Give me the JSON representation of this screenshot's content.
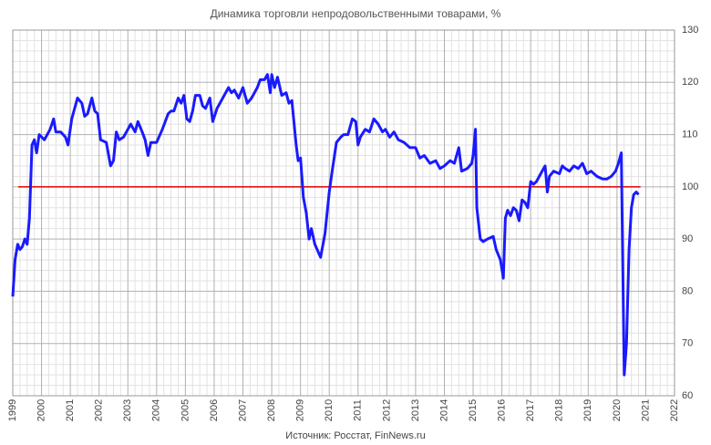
{
  "chart_data": {
    "type": "line",
    "title": "Динамика торговли непродовольственными товарами, %",
    "source": "Источник: Росстат, FinNews.ru",
    "series": [
      {
        "name": "Динамика",
        "color": "#1a1aff",
        "x": [
          1999.0,
          1999.08,
          1999.17,
          1999.25,
          1999.33,
          1999.42,
          1999.5,
          1999.58,
          1999.67,
          1999.75,
          1999.83,
          1999.92,
          2000.1,
          2000.3,
          2000.42,
          2000.5,
          2000.67,
          2000.83,
          2000.92,
          2001.05,
          2001.25,
          2001.4,
          2001.5,
          2001.6,
          2001.75,
          2001.85,
          2001.95,
          2002.05,
          2002.25,
          2002.4,
          2002.5,
          2002.6,
          2002.7,
          2002.85,
          2003.0,
          2003.1,
          2003.25,
          2003.35,
          2003.5,
          2003.6,
          2003.7,
          2003.8,
          2004.0,
          2004.2,
          2004.4,
          2004.5,
          2004.6,
          2004.75,
          2004.85,
          2004.95,
          2005.05,
          2005.15,
          2005.25,
          2005.35,
          2005.5,
          2005.6,
          2005.7,
          2005.85,
          2005.95,
          2006.1,
          2006.3,
          2006.5,
          2006.6,
          2006.7,
          2006.85,
          2007.0,
          2007.15,
          2007.3,
          2007.5,
          2007.6,
          2007.75,
          2007.85,
          2007.95,
          2008.0,
          2008.1,
          2008.2,
          2008.35,
          2008.5,
          2008.6,
          2008.7,
          2008.85,
          2008.92,
          2009.0,
          2009.1,
          2009.2,
          2009.3,
          2009.38,
          2009.5,
          2009.7,
          2009.85,
          2010.0,
          2010.1,
          2010.25,
          2010.4,
          2010.5,
          2010.65,
          2010.8,
          2010.92,
          2011.0,
          2011.08,
          2011.25,
          2011.4,
          2011.55,
          2011.7,
          2011.85,
          2011.95,
          2012.1,
          2012.25,
          2012.4,
          2012.6,
          2012.8,
          2013.0,
          2013.15,
          2013.3,
          2013.5,
          2013.7,
          2013.85,
          2014.0,
          2014.2,
          2014.35,
          2014.5,
          2014.6,
          2014.8,
          2014.95,
          2015.0,
          2015.08,
          2015.13,
          2015.25,
          2015.35,
          2015.5,
          2015.7,
          2015.8,
          2015.95,
          2016.05,
          2016.12,
          2016.2,
          2016.3,
          2016.4,
          2016.5,
          2016.6,
          2016.7,
          2016.8,
          2016.9,
          2017.0,
          2017.1,
          2017.2,
          2017.35,
          2017.5,
          2017.58,
          2017.65,
          2017.8,
          2018.0,
          2018.1,
          2018.2,
          2018.35,
          2018.5,
          2018.65,
          2018.8,
          2018.95,
          2019.1,
          2019.3,
          2019.5,
          2019.65,
          2019.8,
          2019.95,
          2020.05,
          2020.15,
          2020.25,
          2020.33,
          2020.42,
          2020.5,
          2020.58,
          2020.67,
          2020.75
        ],
        "values": [
          79,
          86,
          89,
          88,
          88.5,
          90,
          89,
          94,
          108,
          109,
          106.5,
          110,
          109,
          111,
          113,
          110.5,
          110.5,
          109.5,
          108,
          113,
          117,
          116,
          113.5,
          114,
          117,
          114.5,
          114,
          109,
          108.5,
          104,
          105,
          110.5,
          109,
          109.5,
          111,
          112,
          110.5,
          112.5,
          110.5,
          109,
          106,
          108.5,
          108.5,
          111,
          114,
          114.5,
          114.5,
          117,
          116,
          117.5,
          113,
          112.5,
          114.5,
          117.5,
          117.5,
          115.5,
          115,
          117,
          112.5,
          115,
          117,
          119,
          118,
          118.5,
          117,
          119,
          116,
          117,
          119,
          120.5,
          120.5,
          121.5,
          118,
          121.5,
          119,
          121,
          117.5,
          118,
          116,
          116.5,
          108,
          105,
          105.5,
          98,
          95,
          90,
          92,
          89,
          86.5,
          91,
          99,
          103,
          108.5,
          109.5,
          110,
          110,
          113,
          112.5,
          108,
          109.5,
          111,
          110.5,
          113,
          112,
          110.5,
          111,
          109.5,
          110.5,
          109,
          108.5,
          107.5,
          107.5,
          105.5,
          106,
          104.5,
          105,
          103.5,
          104,
          105,
          104.5,
          107.5,
          103,
          103.5,
          104.5,
          106,
          111,
          96,
          90,
          89.5,
          90,
          90.5,
          88,
          86,
          82.5,
          94,
          95.5,
          94.5,
          96,
          95.5,
          93.5,
          97.5,
          97,
          96,
          101,
          100.5,
          101,
          102.5,
          104,
          99,
          102,
          103,
          102.5,
          104,
          103.5,
          103,
          104,
          103.5,
          104.5,
          102.5,
          103,
          102,
          101.5,
          101.5,
          102,
          103,
          104.5,
          106.5,
          64,
          70,
          88,
          96,
          98.5,
          99,
          98.5
        ]
      }
    ],
    "reference_line": {
      "value": 100,
      "color": "#e00000"
    },
    "xlim": [
      1999,
      2022
    ],
    "xticks": [
      1999,
      2000,
      2001,
      2002,
      2003,
      2004,
      2005,
      2006,
      2007,
      2008,
      2009,
      2010,
      2011,
      2012,
      2013,
      2014,
      2015,
      2016,
      2017,
      2018,
      2019,
      2020,
      2021,
      2022
    ],
    "ylim": [
      60,
      130
    ],
    "yticks": [
      60,
      70,
      80,
      90,
      100,
      110,
      120,
      130
    ],
    "grid": true
  }
}
